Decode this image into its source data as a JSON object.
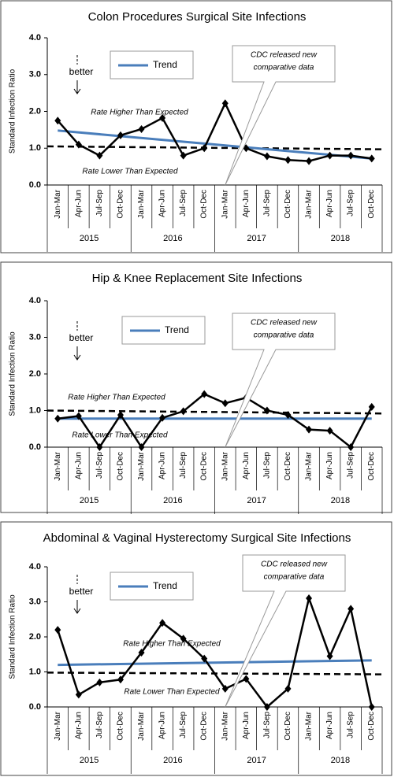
{
  "chart_data": [
    {
      "type": "line",
      "title": "Colon Procedures Surgical Site Infections",
      "y_label": "Standard Infection Ratio",
      "categories": [
        "Jan-Mar",
        "Apr-Jun",
        "Jul-Sep",
        "Oct-Dec",
        "Jan-Mar",
        "Apr-Jun",
        "Jul-Sep",
        "Oct-Dec",
        "Jan-Mar",
        "Apr-Jun",
        "Jul-Sep",
        "Oct-Dec",
        "Jan-Mar",
        "Apr-Jun",
        "Jul-Sep",
        "Oct-Dec"
      ],
      "year_groups": [
        "2015",
        "2016",
        "2017",
        "2018"
      ],
      "series": [
        {
          "color": "#000000",
          "values": [
            1.75,
            1.1,
            0.8,
            1.35,
            1.52,
            1.82,
            0.8,
            1.0,
            2.22,
            1.0,
            0.78,
            0.68,
            0.65,
            0.8,
            0.8,
            0.72
          ]
        }
      ],
      "trend": {
        "name": "Trend",
        "color": "#4a7ebb",
        "start": 1.48,
        "end": 0.72
      },
      "reference_line": {
        "start": 1.05,
        "end": 0.97
      },
      "ylim": [
        0,
        4
      ],
      "yticks": [
        {
          "value": 0,
          "label": "0.0"
        },
        {
          "value": 1,
          "label": "1.0"
        },
        {
          "value": 2,
          "label": "2.0"
        },
        {
          "value": 3,
          "label": "3.0"
        },
        {
          "value": 4,
          "label": "4.0"
        }
      ],
      "annotations": {
        "better": "better",
        "higher": "Rate Higher Than Expected",
        "lower": "Rate Lower Than Expected",
        "callout": [
          "CDC released new",
          "comparative data"
        ]
      }
    },
    {
      "type": "line",
      "title": "Hip & Knee Replacement Site Infections",
      "y_label": "Standard Infection Ratio",
      "categories": [
        "Jan-Mar",
        "Apr-Jun",
        "Jul-Sep",
        "Oct-Dec",
        "Jan-Mar",
        "Apr-Jun",
        "Jul-Sep",
        "Oct-Dec",
        "Jan-Mar",
        "Apr-Jun",
        "Jul-Sep",
        "Oct-Dec",
        "Jan-Mar",
        "Apr-Jun",
        "Jul-Sep",
        "Oct-Dec"
      ],
      "year_groups": [
        "2015",
        "2016",
        "2017",
        "2018"
      ],
      "series": [
        {
          "color": "#000000",
          "values": [
            0.78,
            0.85,
            0.0,
            0.88,
            0.0,
            0.8,
            0.98,
            1.45,
            1.2,
            1.35,
            1.0,
            0.88,
            0.48,
            0.45,
            0.0,
            1.1
          ]
        }
      ],
      "trend": {
        "name": "Trend",
        "color": "#4a7ebb",
        "start": 0.78,
        "end": 0.78
      },
      "reference_line": {
        "start": 1.0,
        "end": 0.92
      },
      "ylim": [
        0,
        4
      ],
      "yticks": [
        {
          "value": 0,
          "label": "0.0"
        },
        {
          "value": 1,
          "label": "1.0"
        },
        {
          "value": 2,
          "label": "2.0"
        },
        {
          "value": 3,
          "label": "3.0"
        },
        {
          "value": 4,
          "label": "4.0"
        }
      ],
      "annotations": {
        "better": "better",
        "higher": "Rate Higher Than Expected",
        "lower": "Rate Lower Than Expected",
        "callout": [
          "CDC released new",
          "comparative data"
        ]
      }
    },
    {
      "type": "line",
      "title": "Abdominal & Vaginal Hysterectomy Surgical Site Infections",
      "y_label": "Standard Infection Ratio",
      "categories": [
        "Jan-Mar",
        "Apr-Jun",
        "Jul-Sep",
        "Oct-Dec",
        "Jan-Mar",
        "Apr-Jun",
        "Jul-Sep",
        "Oct-Dec",
        "Jan-Mar",
        "Apr-Jun",
        "Jul-Sep",
        "Oct-Dec",
        "Jan-Mar",
        "Apr-Jun",
        "Jul-Sep",
        "Oct-Dec"
      ],
      "year_groups": [
        "2015",
        "2016",
        "2017",
        "2018"
      ],
      "series": [
        {
          "color": "#000000",
          "values": [
            2.2,
            0.35,
            0.7,
            0.78,
            1.55,
            2.4,
            1.95,
            1.38,
            0.52,
            0.8,
            0.0,
            0.52,
            3.1,
            1.45,
            2.8,
            0.0
          ]
        }
      ],
      "trend": {
        "name": "Trend",
        "color": "#4a7ebb",
        "start": 1.2,
        "end": 1.33
      },
      "reference_line": {
        "start": 0.98,
        "end": 0.93
      },
      "ylim": [
        0,
        4
      ],
      "yticks": [
        {
          "value": 0,
          "label": "0.0"
        },
        {
          "value": 1,
          "label": "1.0"
        },
        {
          "value": 2,
          "label": "2.0"
        },
        {
          "value": 3,
          "label": "3.0"
        },
        {
          "value": 4,
          "label": "4.0"
        }
      ],
      "annotations": {
        "better": "better",
        "higher": "Rate Higher Than Expected",
        "lower": "Rate Lower Than Expected",
        "callout": [
          "CDC released new",
          "comparative data"
        ]
      }
    }
  ]
}
